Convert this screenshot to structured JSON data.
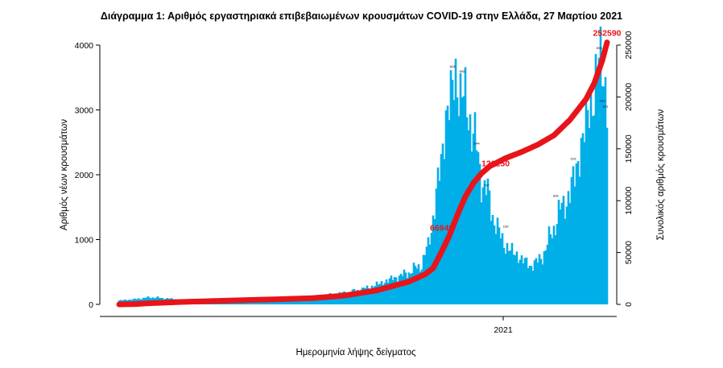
{
  "chart_data": {
    "type": "bar",
    "title": "Διάγραμμα 1: Αριθμός εργαστηριακά επιβεβαιωμένων κρουσμάτων COVID-19 στην Ελλάδα, 27 Μαρτίου 2021",
    "xlabel": "Ημερομηνία λήψης δείγματος",
    "ylabel": "Αριθμός νέων κρουσμάτων",
    "y2label": "Συνολικός αριθμός κρουσμάτων",
    "x_tick_labels": [
      "2021"
    ],
    "ylim": [
      0,
      4000
    ],
    "yticks": [
      0,
      1000,
      2000,
      3000,
      4000
    ],
    "y2lim": [
      0,
      250000
    ],
    "y2ticks": [
      0,
      50000,
      100000,
      150000,
      200000,
      250000
    ],
    "grid": false,
    "series": [
      {
        "type": "bar",
        "axis": "left",
        "color": "#00aee8",
        "anchors": [
          [
            0,
            60
          ],
          [
            10,
            80
          ],
          [
            20,
            110
          ],
          [
            30,
            90
          ],
          [
            40,
            70
          ],
          [
            55,
            60
          ],
          [
            70,
            60
          ],
          [
            85,
            70
          ],
          [
            95,
            90
          ],
          [
            105,
            100
          ],
          [
            115,
            120
          ],
          [
            125,
            130
          ],
          [
            135,
            160
          ],
          [
            145,
            200
          ],
          [
            155,
            260
          ],
          [
            163,
            330
          ],
          [
            170,
            400
          ],
          [
            176,
            450
          ],
          [
            182,
            520
          ],
          [
            188,
            620
          ],
          [
            192,
            900
          ],
          [
            196,
            1500
          ],
          [
            200,
            2200
          ],
          [
            203,
            2900
          ],
          [
            206,
            3200
          ],
          [
            209,
            3500
          ],
          [
            212,
            3300
          ],
          [
            215,
            3100
          ],
          [
            218,
            2900
          ],
          [
            221,
            2500
          ],
          [
            224,
            2100
          ],
          [
            227,
            1800
          ],
          [
            230,
            1600
          ],
          [
            233,
            1300
          ],
          [
            236,
            1100
          ],
          [
            240,
            900
          ],
          [
            245,
            800
          ],
          [
            250,
            700
          ],
          [
            255,
            600
          ],
          [
            260,
            650
          ],
          [
            265,
            850
          ],
          [
            270,
            1200
          ],
          [
            275,
            1500
          ],
          [
            280,
            1700
          ],
          [
            285,
            2200
          ],
          [
            290,
            2800
          ],
          [
            295,
            3300
          ],
          [
            298,
            3700
          ],
          [
            301,
            3850
          ],
          [
            303,
            3000
          ]
        ]
      },
      {
        "type": "line",
        "axis": "right",
        "color": "#e8141a",
        "anchors": [
          [
            0,
            0
          ],
          [
            10,
            300
          ],
          [
            20,
            1200
          ],
          [
            40,
            2400
          ],
          [
            60,
            3300
          ],
          [
            80,
            4200
          ],
          [
            100,
            5000
          ],
          [
            120,
            6000
          ],
          [
            140,
            8500
          ],
          [
            160,
            13500
          ],
          [
            180,
            22000
          ],
          [
            190,
            29000
          ],
          [
            195,
            35000
          ],
          [
            200,
            50000
          ],
          [
            205,
            66000
          ],
          [
            210,
            86000
          ],
          [
            215,
            104000
          ],
          [
            220,
            117000
          ],
          [
            225,
            126250
          ],
          [
            230,
            133000
          ],
          [
            240,
            141000
          ],
          [
            250,
            147000
          ],
          [
            260,
            154000
          ],
          [
            270,
            163000
          ],
          [
            280,
            178000
          ],
          [
            290,
            198000
          ],
          [
            295,
            213000
          ],
          [
            300,
            235000
          ],
          [
            303,
            252590
          ]
        ]
      }
    ],
    "annotations": [
      {
        "text": "66948",
        "x": 193,
        "y2": 71000
      },
      {
        "text": "126250",
        "x": 225,
        "y2": 133000
      },
      {
        "text": "252590",
        "x": 303,
        "y2": 259000
      }
    ],
    "bar_labels": [
      {
        "text": "3625",
        "x": 207,
        "value": 3625
      },
      {
        "text": "3552",
        "x": 213,
        "value": 3552
      },
      {
        "text": "3916",
        "x": 298,
        "value": 3916
      },
      {
        "text": "1162",
        "x": 240,
        "value": 1162
      },
      {
        "text": "2202",
        "x": 282,
        "value": 2202
      },
      {
        "text": "3011",
        "x": 302,
        "value": 3011
      },
      {
        "text": "2444",
        "x": 222,
        "value": 2444
      },
      {
        "text": "1797",
        "x": 228,
        "value": 1797
      },
      {
        "text": "1634",
        "x": 271,
        "value": 1634
      },
      {
        "text": "3102",
        "x": 300,
        "value": 3102
      }
    ]
  }
}
